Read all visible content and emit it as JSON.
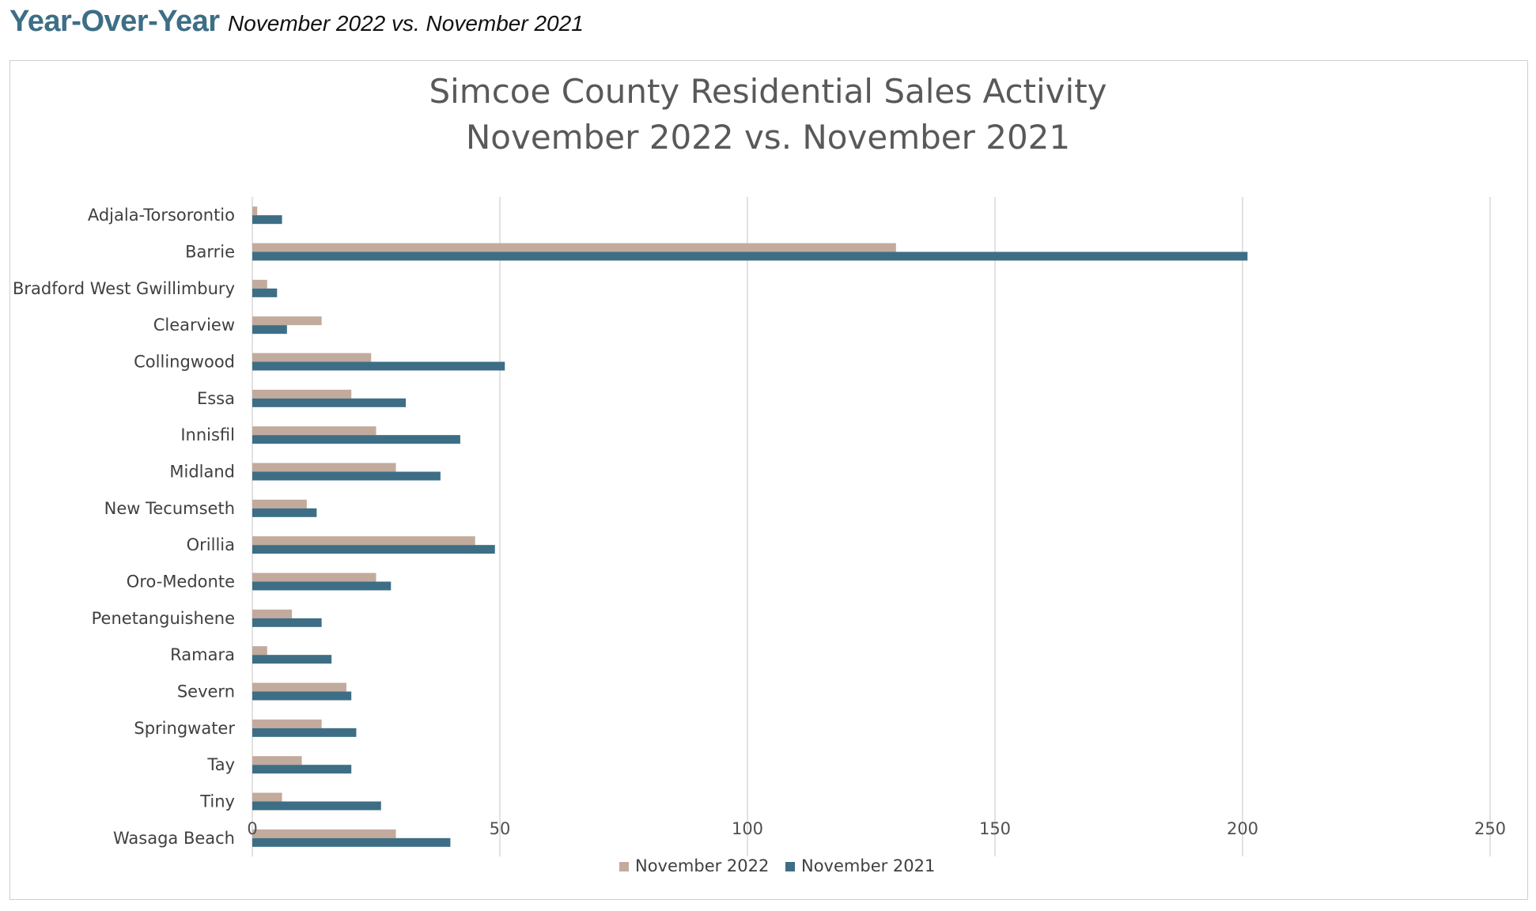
{
  "header": {
    "title": "Year-Over-Year",
    "subtitle": "November 2022 vs. November 2021"
  },
  "colors": {
    "header_title": "#3d6e86",
    "series_2022": "#c2aa9d",
    "series_2021": "#3d6e86",
    "gridline": "#d9d9d9",
    "frame_border": "#cfcfcf"
  },
  "chart_data": {
    "type": "bar",
    "orientation": "horizontal",
    "title": "Simcoe County Residential Sales Activity",
    "subtitle": "November 2022 vs. November 2021",
    "categories": [
      "Adjala-Torsorontio",
      "Barrie",
      "Bradford West Gwillimbury",
      "Clearview",
      "Collingwood",
      "Essa",
      "Innisfil",
      "Midland",
      "New Tecumseth",
      "Orillia",
      "Oro-Medonte",
      "Penetanguishene",
      "Ramara",
      "Severn",
      "Springwater",
      "Tay",
      "Tiny",
      "Wasaga Beach"
    ],
    "series": [
      {
        "name": "November 2022",
        "color": "#c2aa9d",
        "values": [
          1,
          130,
          3,
          14,
          24,
          20,
          25,
          29,
          11,
          45,
          25,
          8,
          3,
          19,
          14,
          10,
          6,
          29
        ]
      },
      {
        "name": "November 2021",
        "color": "#3d6e86",
        "values": [
          6,
          201,
          5,
          7,
          51,
          31,
          42,
          38,
          13,
          49,
          28,
          14,
          16,
          20,
          21,
          20,
          26,
          40
        ]
      }
    ],
    "xlim": [
      0,
      250
    ],
    "xticks": [
      0,
      50,
      100,
      150,
      200,
      250
    ],
    "xlabel": "",
    "ylabel": "",
    "grid": true,
    "legend_position": "bottom"
  }
}
